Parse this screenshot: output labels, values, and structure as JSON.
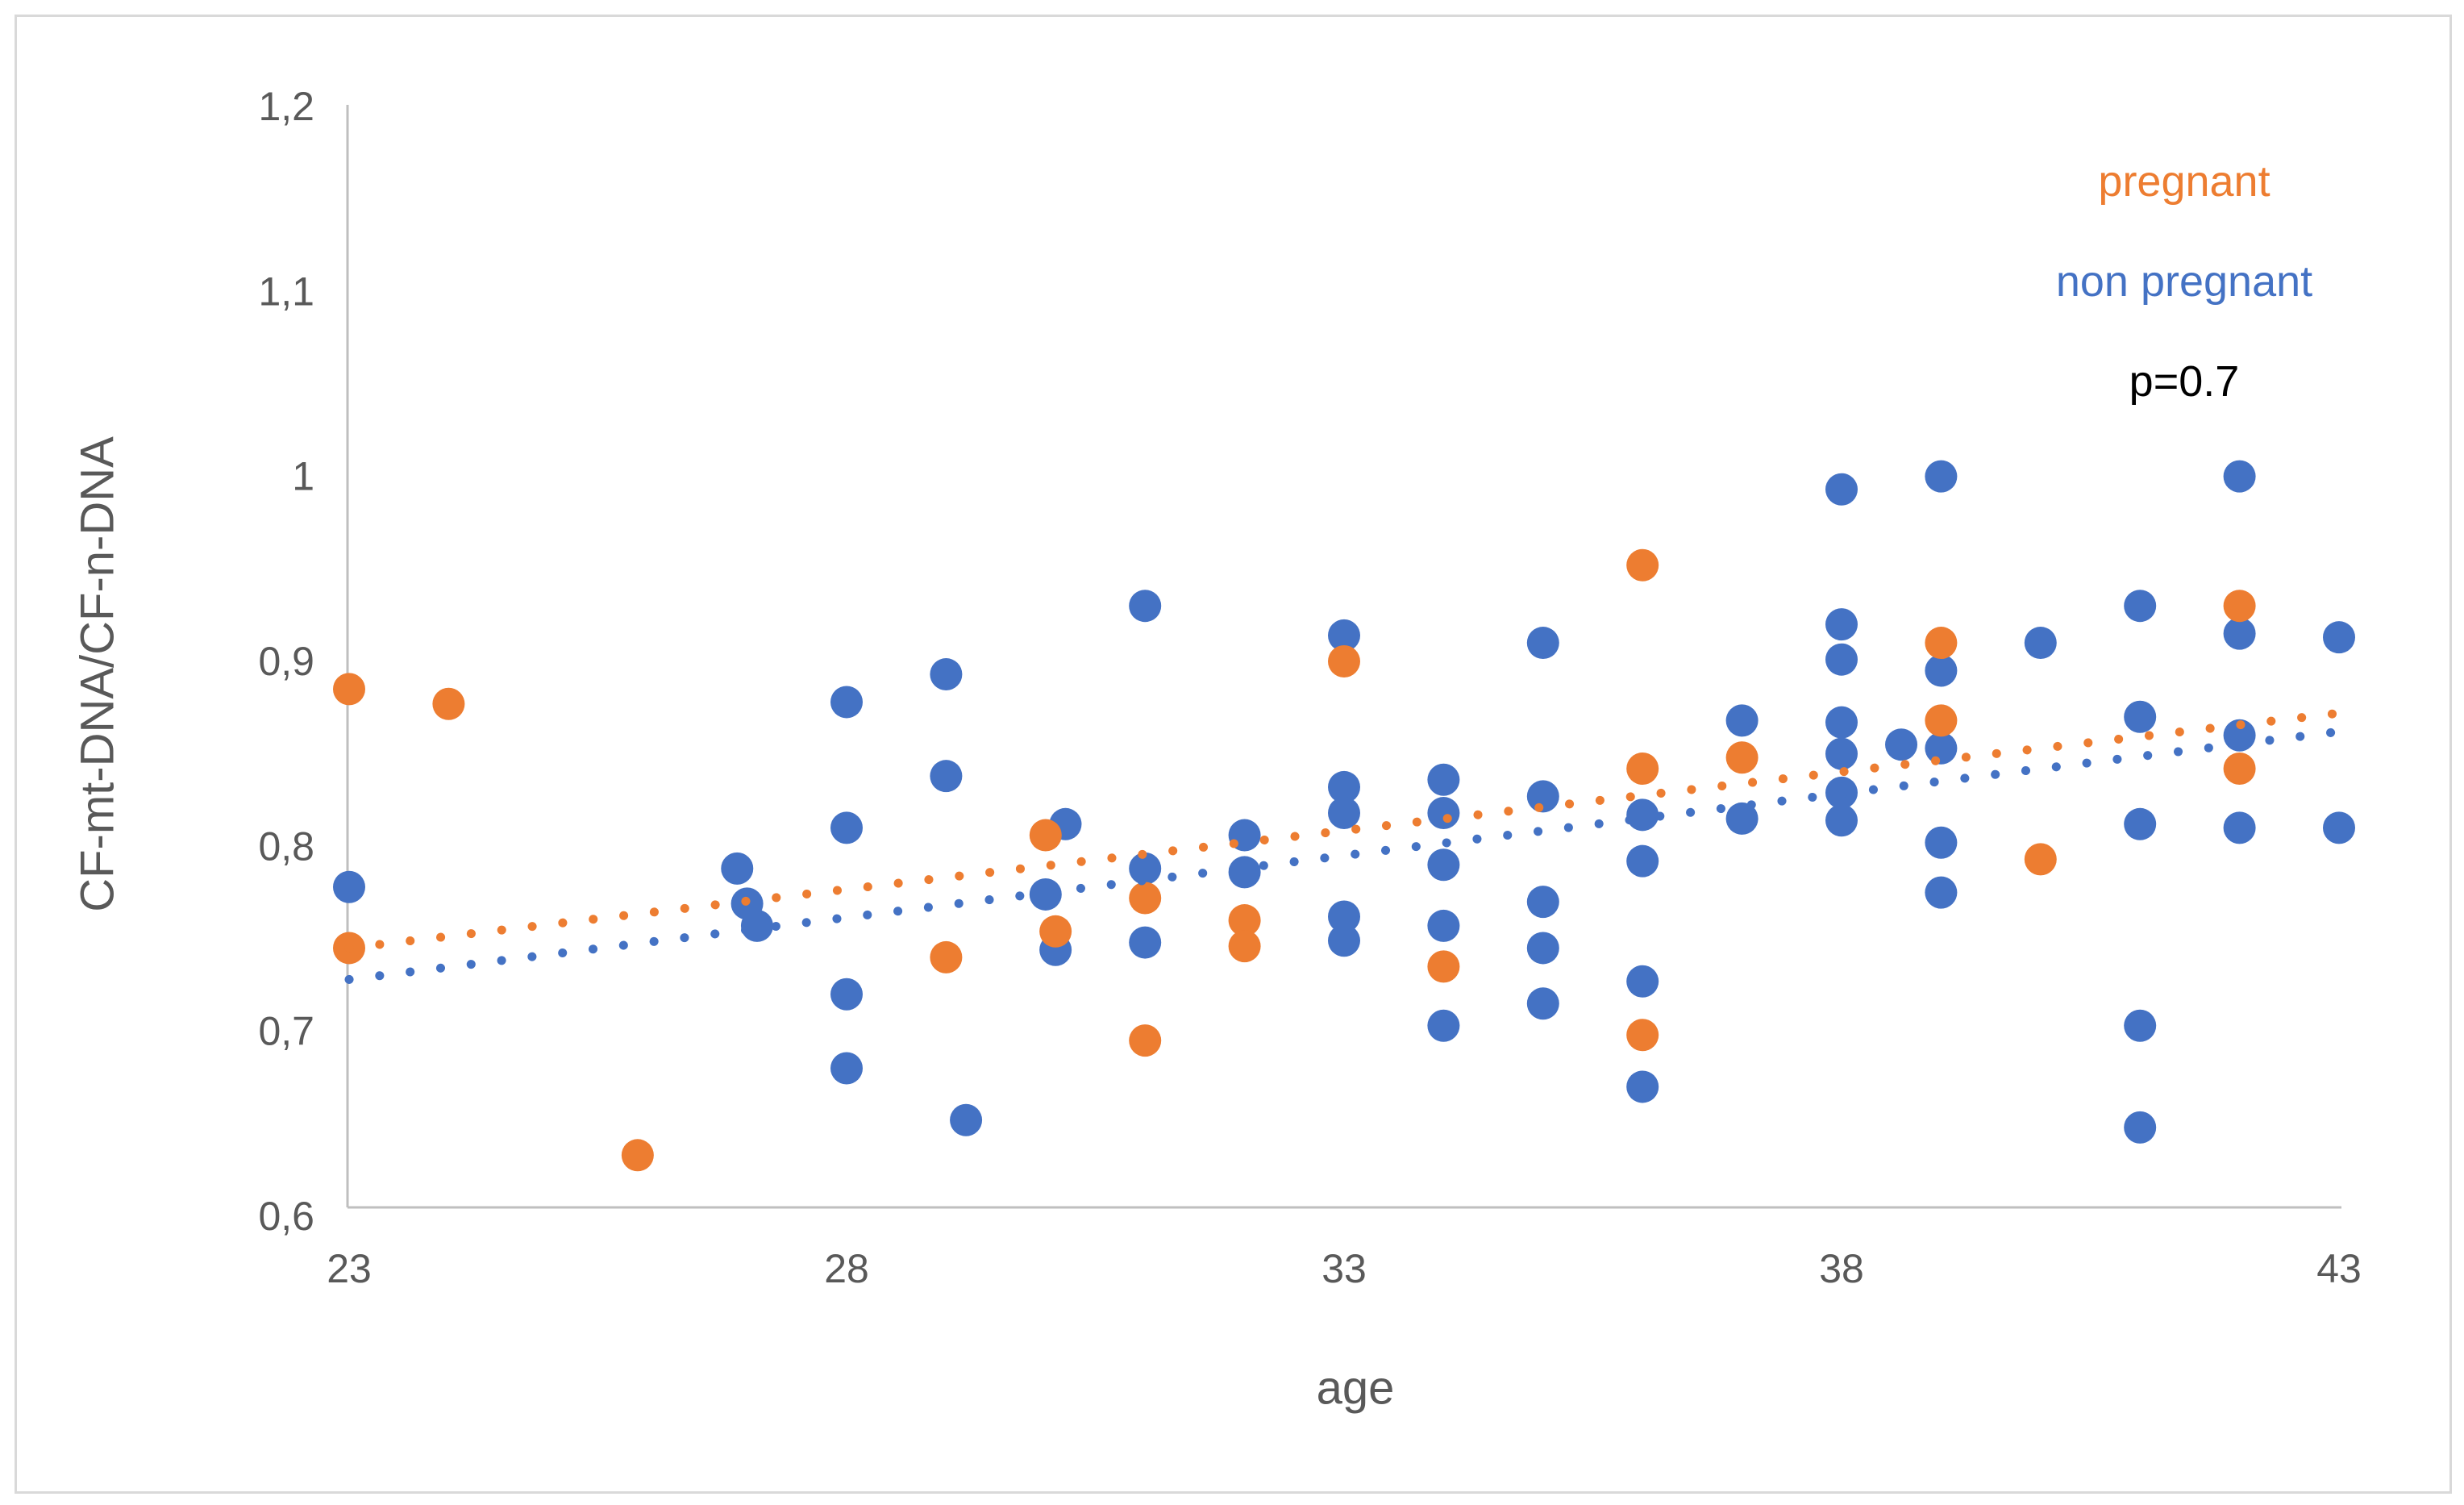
{
  "chart_data": {
    "type": "scatter",
    "title": "",
    "xlabel": "age",
    "ylabel": "CF-mt-DNA/CF-n-DNA",
    "xlim": [
      23,
      43
    ],
    "ylim": [
      0.6,
      1.2
    ],
    "grid": false,
    "legend_position": "top-right",
    "decimal_separator": ",",
    "x_ticks": {
      "values": [
        23,
        28,
        33,
        38,
        43
      ],
      "labels": [
        "23",
        "28",
        "33",
        "38",
        "43"
      ]
    },
    "y_ticks": {
      "values": [
        1.2,
        1.1,
        1.0,
        0.9,
        0.8,
        0.7,
        0.6
      ],
      "labels": [
        "1,2",
        "1,1",
        "1",
        "0,9",
        "0,8",
        "0,7",
        "0,6"
      ]
    },
    "annotation": {
      "text": "p=0.7",
      "color": "#000000"
    },
    "series": [
      {
        "name": "pregnant",
        "color": "#ED7D31",
        "marker": "circle",
        "points": [
          [
            23,
            0.885
          ],
          [
            24,
            0.877
          ],
          [
            23,
            0.745
          ],
          [
            25.9,
            0.633
          ],
          [
            29,
            0.74
          ],
          [
            30,
            0.806
          ],
          [
            30.1,
            0.754
          ],
          [
            31,
            0.772
          ],
          [
            31,
            0.695
          ],
          [
            32,
            0.76
          ],
          [
            32,
            0.746
          ],
          [
            33,
            0.9
          ],
          [
            34,
            0.735
          ],
          [
            36,
            0.952
          ],
          [
            36,
            0.842
          ],
          [
            36,
            0.698
          ],
          [
            37,
            0.848
          ],
          [
            39,
            0.91
          ],
          [
            39,
            0.868
          ],
          [
            40,
            0.793
          ],
          [
            42,
            0.93
          ],
          [
            42,
            0.842
          ]
        ],
        "trendline": {
          "style": "dotted",
          "start": [
            23,
            0.745
          ],
          "end": [
            43,
            0.872
          ]
        }
      },
      {
        "name": "non pregnant",
        "color": "#4472C4",
        "marker": "circle",
        "points": [
          [
            23,
            0.778
          ],
          [
            26.9,
            0.788
          ],
          [
            27,
            0.769
          ],
          [
            27.1,
            0.757
          ],
          [
            28,
            0.878
          ],
          [
            28,
            0.81
          ],
          [
            28,
            0.72
          ],
          [
            28,
            0.68
          ],
          [
            29,
            0.893
          ],
          [
            29,
            0.838
          ],
          [
            29.2,
            0.652
          ],
          [
            30.2,
            0.812
          ],
          [
            30,
            0.774
          ],
          [
            30.1,
            0.744
          ],
          [
            31,
            0.93
          ],
          [
            31,
            0.788
          ],
          [
            31,
            0.748
          ],
          [
            32,
            0.806
          ],
          [
            32,
            0.786
          ],
          [
            33,
            0.914
          ],
          [
            33,
            0.832
          ],
          [
            33,
            0.818
          ],
          [
            33,
            0.762
          ],
          [
            33,
            0.749
          ],
          [
            34,
            0.836
          ],
          [
            34,
            0.818
          ],
          [
            34,
            0.79
          ],
          [
            34,
            0.757
          ],
          [
            34,
            0.703
          ],
          [
            35,
            0.91
          ],
          [
            35,
            0.827
          ],
          [
            35,
            0.77
          ],
          [
            35,
            0.745
          ],
          [
            35,
            0.715
          ],
          [
            36,
            0.817
          ],
          [
            36,
            0.792
          ],
          [
            36,
            0.727
          ],
          [
            36,
            0.67
          ],
          [
            37,
            0.868
          ],
          [
            37,
            0.815
          ],
          [
            38,
            0.993
          ],
          [
            38,
            0.92
          ],
          [
            38,
            0.901
          ],
          [
            38,
            0.867
          ],
          [
            38,
            0.85
          ],
          [
            38,
            0.829
          ],
          [
            38,
            0.814
          ],
          [
            38.6,
            0.855
          ],
          [
            39,
            1.0
          ],
          [
            39,
            0.895
          ],
          [
            39,
            0.853
          ],
          [
            39,
            0.802
          ],
          [
            39,
            0.775
          ],
          [
            40,
            0.91
          ],
          [
            41,
            0.93
          ],
          [
            41,
            0.87
          ],
          [
            41,
            0.812
          ],
          [
            41,
            0.703
          ],
          [
            41,
            0.648
          ],
          [
            42,
            1.0
          ],
          [
            42,
            0.915
          ],
          [
            42,
            0.86
          ],
          [
            42,
            0.81
          ],
          [
            43,
            0.913
          ],
          [
            43,
            0.81
          ]
        ],
        "trendline": {
          "style": "dotted",
          "start": [
            23,
            0.728
          ],
          "end": [
            43,
            0.862
          ]
        }
      }
    ]
  },
  "style_colors": {
    "axis_line": "#BFBFBF",
    "tick_label": "#595959",
    "figure_border": "#D9D9D9",
    "background": "#FFFFFF"
  }
}
